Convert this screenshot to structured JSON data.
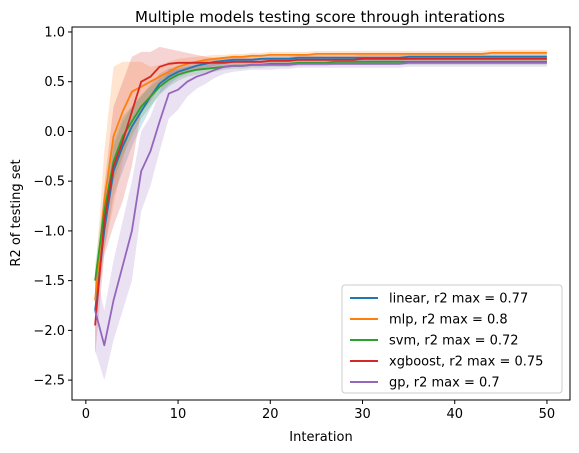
{
  "chart_data": {
    "type": "line",
    "title": "Multiple models testing score through interations",
    "xlabel": "Interation",
    "ylabel": "R2 of testing set",
    "xlim": [
      -1.5,
      52.5
    ],
    "ylim": [
      -2.7,
      1.05
    ],
    "xticks": [
      0,
      10,
      20,
      30,
      40,
      50
    ],
    "xtick_labels": [
      "0",
      "10",
      "20",
      "30",
      "40",
      "50"
    ],
    "yticks": [
      -2.5,
      -2.0,
      -1.5,
      -1.0,
      -0.5,
      0.0,
      0.5,
      1.0
    ],
    "ytick_labels": [
      "−2.5",
      "−2.0",
      "−1.5",
      "−1.0",
      "−0.5",
      "0.0",
      "0.5",
      "1.0"
    ],
    "grid": false,
    "legend_position": "lower right",
    "x": [
      1,
      2,
      3,
      4,
      5,
      6,
      7,
      8,
      9,
      10,
      11,
      12,
      13,
      14,
      15,
      16,
      17,
      18,
      19,
      20,
      21,
      22,
      23,
      24,
      25,
      26,
      27,
      28,
      29,
      30,
      31,
      32,
      33,
      34,
      35,
      36,
      37,
      38,
      39,
      40,
      41,
      42,
      43,
      44,
      45,
      46,
      47,
      48,
      49,
      50
    ],
    "series": [
      {
        "name": "linear, r2 max = 0.77",
        "color": "#1f77b4",
        "values": [
          -1.8,
          -1.0,
          -0.4,
          -0.15,
          0.05,
          0.2,
          0.35,
          0.48,
          0.55,
          0.6,
          0.63,
          0.66,
          0.68,
          0.7,
          0.71,
          0.72,
          0.72,
          0.72,
          0.73,
          0.73,
          0.73,
          0.73,
          0.74,
          0.74,
          0.74,
          0.74,
          0.74,
          0.74,
          0.74,
          0.74,
          0.74,
          0.74,
          0.74,
          0.74,
          0.75,
          0.75,
          0.75,
          0.75,
          0.75,
          0.75,
          0.75,
          0.75,
          0.75,
          0.75,
          0.75,
          0.75,
          0.75,
          0.75,
          0.75,
          0.75
        ],
        "band": [
          0.15,
          0.2,
          0.25,
          0.25,
          0.2,
          0.15,
          0.12,
          0.1,
          0.08,
          0.06,
          0.05,
          0.05,
          0.04,
          0.04,
          0.03,
          0.03,
          0.03,
          0.03,
          0.03,
          0.03,
          0.03,
          0.03,
          0.03,
          0.03,
          0.03,
          0.03,
          0.03,
          0.03,
          0.03,
          0.03,
          0.03,
          0.03,
          0.03,
          0.03,
          0.03,
          0.03,
          0.03,
          0.03,
          0.03,
          0.03,
          0.03,
          0.03,
          0.03,
          0.03,
          0.03,
          0.03,
          0.03,
          0.03,
          0.03,
          0.03
        ]
      },
      {
        "name": "mlp, r2 max = 0.8",
        "color": "#ff7f0e",
        "values": [
          -1.7,
          -0.7,
          -0.05,
          0.2,
          0.4,
          0.45,
          0.5,
          0.55,
          0.6,
          0.65,
          0.68,
          0.7,
          0.72,
          0.73,
          0.74,
          0.75,
          0.75,
          0.76,
          0.76,
          0.77,
          0.77,
          0.77,
          0.77,
          0.77,
          0.78,
          0.78,
          0.78,
          0.78,
          0.78,
          0.78,
          0.78,
          0.78,
          0.78,
          0.78,
          0.78,
          0.78,
          0.78,
          0.78,
          0.78,
          0.78,
          0.78,
          0.78,
          0.78,
          0.79,
          0.79,
          0.79,
          0.79,
          0.79,
          0.79,
          0.79
        ],
        "band": [
          0.2,
          0.5,
          0.7,
          0.5,
          0.3,
          0.25,
          0.15,
          0.12,
          0.1,
          0.08,
          0.06,
          0.05,
          0.04,
          0.04,
          0.03,
          0.03,
          0.03,
          0.03,
          0.03,
          0.03,
          0.03,
          0.03,
          0.03,
          0.03,
          0.03,
          0.03,
          0.03,
          0.03,
          0.03,
          0.03,
          0.03,
          0.03,
          0.03,
          0.03,
          0.03,
          0.03,
          0.03,
          0.03,
          0.03,
          0.03,
          0.03,
          0.03,
          0.03,
          0.03,
          0.03,
          0.03,
          0.03,
          0.03,
          0.03,
          0.03
        ]
      },
      {
        "name": "svm, r2 max = 0.72",
        "color": "#2ca02c",
        "values": [
          -1.5,
          -0.8,
          -0.3,
          -0.05,
          0.1,
          0.25,
          0.35,
          0.45,
          0.52,
          0.57,
          0.6,
          0.62,
          0.63,
          0.64,
          0.65,
          0.66,
          0.66,
          0.67,
          0.67,
          0.68,
          0.68,
          0.68,
          0.69,
          0.69,
          0.69,
          0.69,
          0.7,
          0.7,
          0.7,
          0.7,
          0.7,
          0.7,
          0.7,
          0.7,
          0.7,
          0.7,
          0.7,
          0.7,
          0.7,
          0.7,
          0.7,
          0.7,
          0.7,
          0.7,
          0.7,
          0.7,
          0.7,
          0.7,
          0.7,
          0.7
        ],
        "band": [
          0.15,
          0.2,
          0.2,
          0.2,
          0.15,
          0.12,
          0.1,
          0.08,
          0.07,
          0.06,
          0.05,
          0.05,
          0.04,
          0.04,
          0.03,
          0.03,
          0.03,
          0.03,
          0.03,
          0.03,
          0.03,
          0.03,
          0.03,
          0.03,
          0.03,
          0.03,
          0.03,
          0.03,
          0.03,
          0.03,
          0.03,
          0.03,
          0.03,
          0.03,
          0.03,
          0.03,
          0.03,
          0.03,
          0.03,
          0.03,
          0.03,
          0.03,
          0.03,
          0.03,
          0.03,
          0.03,
          0.03,
          0.03,
          0.03,
          0.03
        ]
      },
      {
        "name": "xgboost, r2 max = 0.75",
        "color": "#d62728",
        "values": [
          -1.95,
          -0.9,
          -0.35,
          -0.1,
          0.2,
          0.5,
          0.55,
          0.65,
          0.68,
          0.69,
          0.69,
          0.69,
          0.69,
          0.69,
          0.69,
          0.7,
          0.7,
          0.7,
          0.7,
          0.71,
          0.71,
          0.71,
          0.72,
          0.72,
          0.72,
          0.72,
          0.72,
          0.72,
          0.72,
          0.73,
          0.73,
          0.73,
          0.73,
          0.73,
          0.73,
          0.73,
          0.73,
          0.73,
          0.73,
          0.73,
          0.73,
          0.73,
          0.73,
          0.73,
          0.73,
          0.73,
          0.73,
          0.73,
          0.73,
          0.73
        ],
        "band": [
          0.3,
          0.35,
          0.6,
          0.6,
          0.55,
          0.3,
          0.25,
          0.2,
          0.15,
          0.12,
          0.1,
          0.08,
          0.06,
          0.05,
          0.05,
          0.04,
          0.04,
          0.04,
          0.04,
          0.04,
          0.04,
          0.04,
          0.04,
          0.04,
          0.04,
          0.04,
          0.04,
          0.04,
          0.04,
          0.04,
          0.04,
          0.04,
          0.04,
          0.04,
          0.04,
          0.04,
          0.04,
          0.04,
          0.04,
          0.04,
          0.04,
          0.04,
          0.04,
          0.04,
          0.04,
          0.04,
          0.04,
          0.04,
          0.04,
          0.04
        ]
      },
      {
        "name": "gp, r2 max = 0.7",
        "color": "#9467bd",
        "values": [
          -1.8,
          -2.15,
          -1.7,
          -1.35,
          -1.0,
          -0.4,
          -0.2,
          0.1,
          0.38,
          0.42,
          0.5,
          0.55,
          0.58,
          0.62,
          0.65,
          0.66,
          0.66,
          0.67,
          0.67,
          0.67,
          0.67,
          0.67,
          0.68,
          0.68,
          0.68,
          0.68,
          0.68,
          0.68,
          0.68,
          0.68,
          0.68,
          0.68,
          0.68,
          0.68,
          0.69,
          0.69,
          0.69,
          0.69,
          0.69,
          0.69,
          0.69,
          0.69,
          0.69,
          0.69,
          0.69,
          0.69,
          0.69,
          0.69,
          0.69,
          0.69
        ],
        "band": [
          0.4,
          0.35,
          0.4,
          0.45,
          0.5,
          0.4,
          0.35,
          0.3,
          0.25,
          0.2,
          0.15,
          0.12,
          0.1,
          0.08,
          0.07,
          0.06,
          0.05,
          0.05,
          0.05,
          0.05,
          0.04,
          0.04,
          0.04,
          0.04,
          0.04,
          0.04,
          0.04,
          0.04,
          0.04,
          0.04,
          0.04,
          0.04,
          0.04,
          0.04,
          0.04,
          0.04,
          0.04,
          0.04,
          0.04,
          0.04,
          0.04,
          0.04,
          0.04,
          0.04,
          0.04,
          0.04,
          0.04,
          0.04,
          0.04,
          0.04
        ]
      }
    ]
  }
}
